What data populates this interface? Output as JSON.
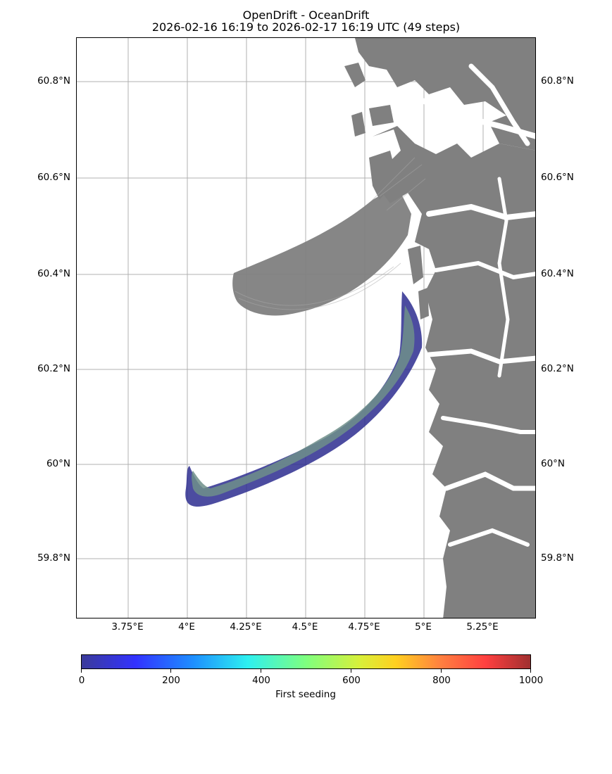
{
  "title": {
    "line1": "OpenDrift - OceanDrift",
    "line2": "2026-02-16 16:19 to 2026-02-17 16:19 UTC (49 steps)"
  },
  "map": {
    "lat_labels": [
      "60.8°N",
      "60.6°N",
      "60.4°N",
      "60.2°N",
      "60°N",
      "59.8°N"
    ],
    "lon_labels": [
      "3.75°E",
      "4°E",
      "4.25°E",
      "4.5°E",
      "4.75°E",
      "5°E",
      "5.25°E"
    ],
    "land_color": "#808080",
    "gridline_color": "#b0b0b0",
    "trajectory_color": "#808080"
  },
  "colorbar": {
    "label": "First seeding",
    "tick_labels": [
      "0",
      "200",
      "400",
      "600",
      "800",
      "1000"
    ],
    "range": [
      0,
      1000
    ],
    "colormap": "jet"
  }
}
